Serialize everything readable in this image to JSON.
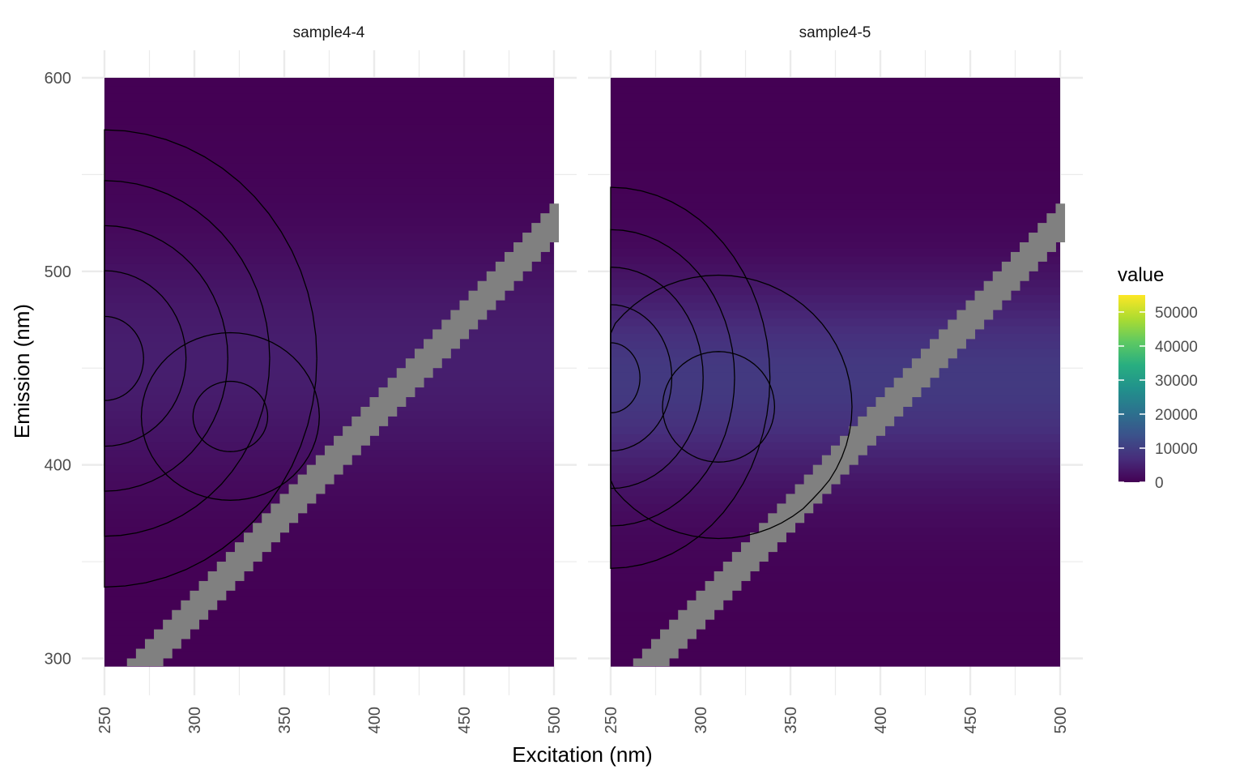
{
  "chart_data": {
    "type": "heatmap",
    "xlabel": "Excitation (nm)",
    "ylabel": "Emission (nm)",
    "xlim": [
      250,
      500
    ],
    "ylim": [
      296,
      600
    ],
    "x_ticks": [
      250,
      300,
      350,
      400,
      450,
      500
    ],
    "y_ticks": [
      300,
      400,
      500,
      600
    ],
    "grid": true,
    "colormap": "viridis",
    "masked_color": "#808080",
    "masked_band": "Rayleigh scatter diagonal: emission between excitation+20 nm and excitation+40 nm (masked, grey)",
    "legend": {
      "title": "value",
      "position": "right",
      "range": [
        0,
        55000
      ],
      "ticks": [
        0,
        10000,
        20000,
        30000,
        40000,
        50000
      ]
    },
    "panels": [
      {
        "label": "sample4-4",
        "peaks": [
          {
            "ex": 250,
            "em": 455,
            "value": 5000,
            "spread_ex": 60,
            "spread_em": 60
          },
          {
            "ex": 320,
            "em": 425,
            "value": 2400,
            "spread_ex": 40,
            "spread_em": 35
          }
        ]
      },
      {
        "label": "sample4-5",
        "peaks": [
          {
            "ex": 250,
            "em": 445,
            "value": 9000,
            "spread_ex": 45,
            "spread_em": 50
          },
          {
            "ex": 310,
            "em": 430,
            "value": 3600,
            "spread_ex": 60,
            "spread_em": 55
          }
        ]
      }
    ]
  }
}
